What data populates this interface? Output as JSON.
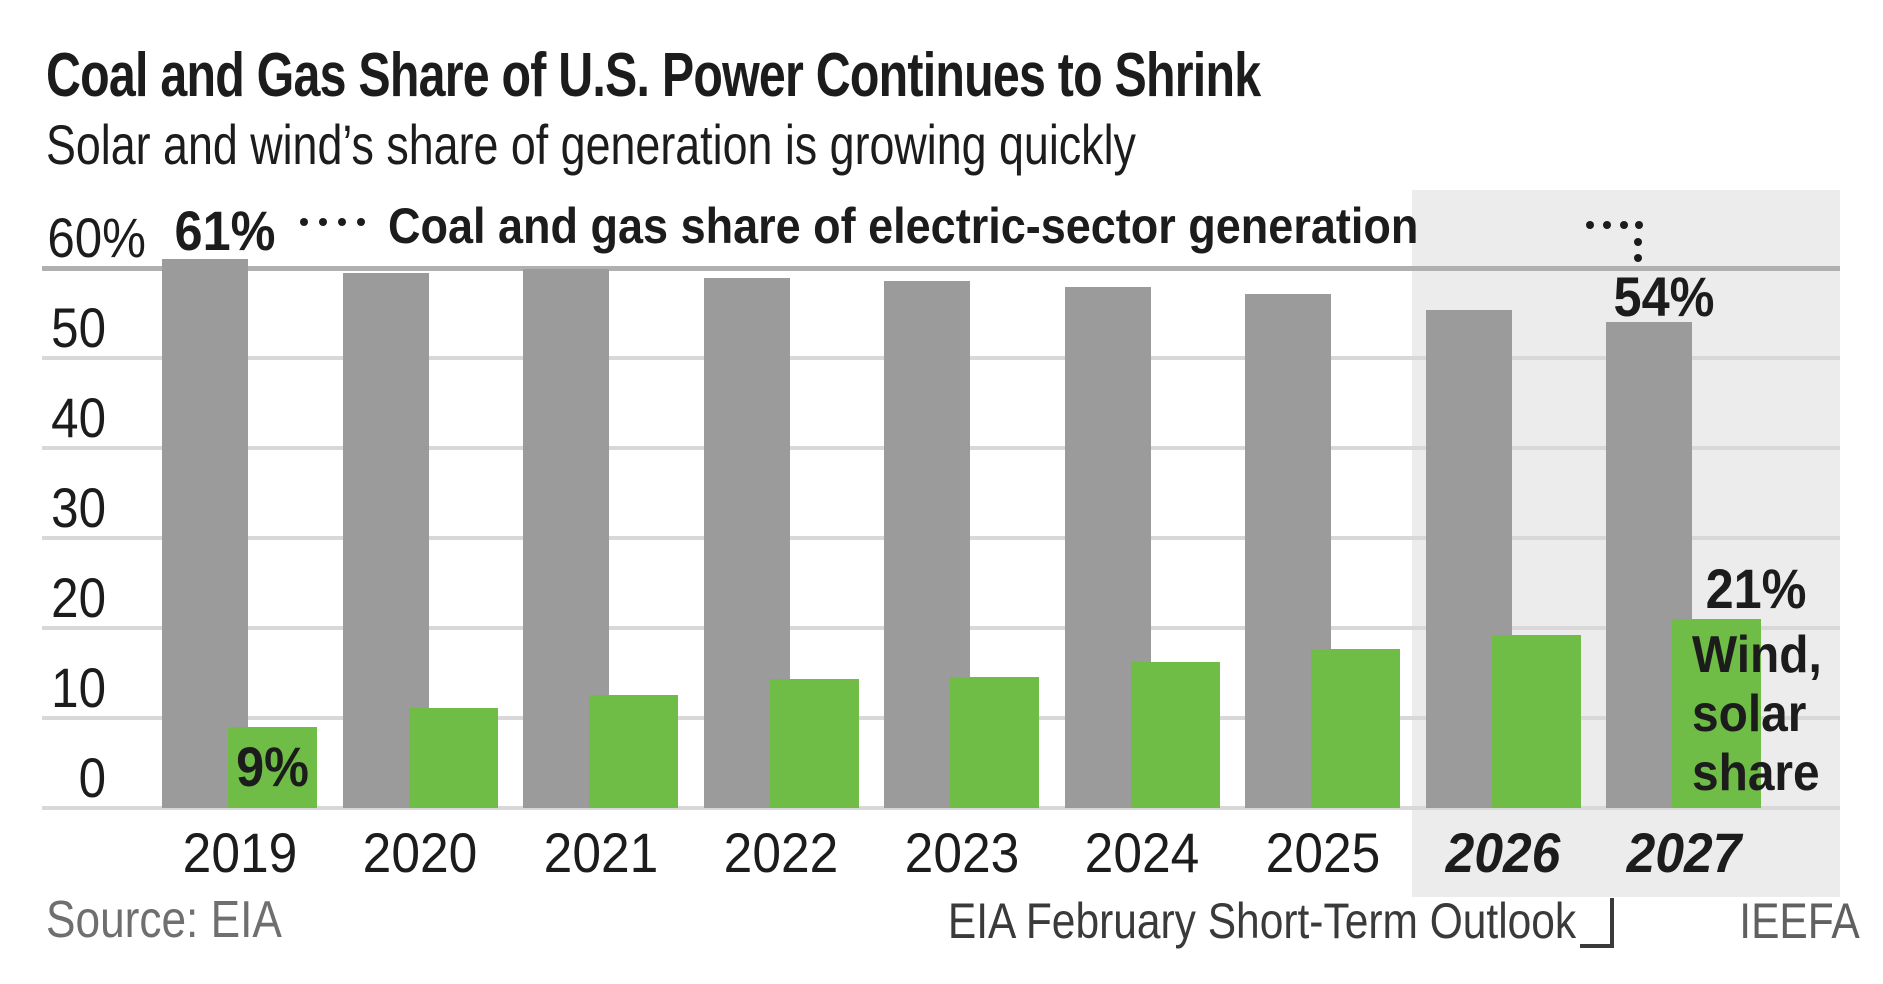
{
  "header": {
    "title": "Coal and Gas Share of U.S. Power Continues to Shrink",
    "subtitle": "Solar and wind’s share of generation is growing quickly"
  },
  "series_annotation": "Coal and gas share of electric-sector generation",
  "axis": {
    "y_tick_labels": [
      "60%",
      "50",
      "40",
      "30",
      "20",
      "10",
      "0"
    ],
    "y_tick_values": [
      60,
      50,
      40,
      30,
      20,
      10,
      0
    ]
  },
  "chart_data": {
    "type": "bar",
    "title": "Coal and Gas Share of U.S. Power Continues to Shrink",
    "subtitle": "Solar and wind’s share of generation is growing quickly",
    "categories": [
      "2019",
      "2020",
      "2021",
      "2022",
      "2023",
      "2024",
      "2025",
      "2026",
      "2027"
    ],
    "forecast_categories": [
      "2026",
      "2027"
    ],
    "ylim": [
      0,
      60
    ],
    "grid": true,
    "legend_position": "none",
    "series": [
      {
        "name": "Coal and gas share of electric-sector generation",
        "color": "#9b9b9b",
        "values": [
          61,
          59.4,
          59.9,
          58.9,
          58.6,
          57.9,
          57.1,
          55.3,
          54
        ]
      },
      {
        "name": "Wind, solar share",
        "color": "#6fbd46",
        "values": [
          9,
          11.1,
          12.6,
          14.3,
          14.6,
          16.2,
          17.7,
          19.2,
          21
        ]
      }
    ],
    "point_labels": {
      "coal_gas_2019": "61%",
      "wind_solar_2019": "9%",
      "coal_gas_2027": "54%",
      "wind_solar_2027": "21%"
    }
  },
  "right_label": {
    "lines": [
      "Wind,",
      "solar",
      "share"
    ]
  },
  "footer": {
    "source": "Source: EIA",
    "note": "EIA February Short-Term Outlook",
    "credit": "IEEFA"
  },
  "colors": {
    "coal_gas_bar": "#9b9b9b",
    "wind_solar_bar": "#6fbd46",
    "forecast_shade": "#ececec",
    "gridline": "#d8d8d8",
    "top_gridline": "#b0b0b0",
    "text": "#1c1c1c",
    "source_text": "#6f6f6f",
    "note_text": "#3a3a3a"
  }
}
